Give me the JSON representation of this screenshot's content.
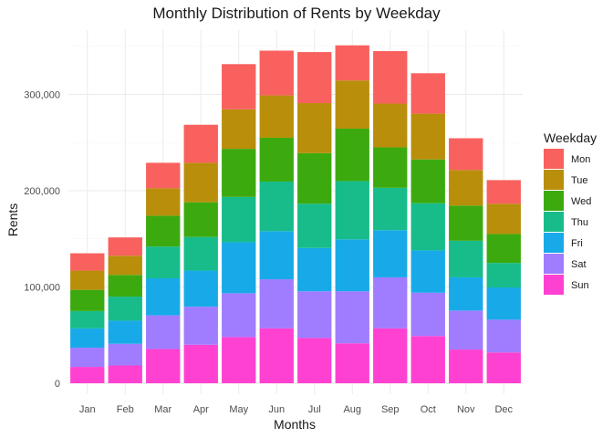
{
  "chart_data": {
    "type": "bar",
    "stacked": true,
    "title": "Monthly Distribution of Rents by Weekday",
    "xlabel": "Months",
    "ylabel": "Rents",
    "ylim": [
      0,
      350000
    ],
    "yticks": [
      0,
      100000,
      200000,
      300000
    ],
    "ytick_labels": [
      "0",
      "100,000",
      "200,000",
      "300,000"
    ],
    "grid": true,
    "legend": {
      "title": "Weekday",
      "position": "right"
    },
    "categories": [
      "Jan",
      "Feb",
      "Mar",
      "Apr",
      "May",
      "Jun",
      "Jul",
      "Aug",
      "Sep",
      "Oct",
      "Nov",
      "Dec"
    ],
    "series": [
      {
        "name": "Sun",
        "color": "#FF41D2",
        "values": [
          17000,
          18500,
          35500,
          40000,
          48000,
          57000,
          47000,
          41500,
          57000,
          49000,
          35000,
          32000
        ]
      },
      {
        "name": "Sat",
        "color": "#A07CFF",
        "values": [
          20000,
          22500,
          35000,
          39500,
          45500,
          51000,
          48500,
          54000,
          53000,
          45000,
          40500,
          34000
        ]
      },
      {
        "name": "Fri",
        "color": "#18AAE8",
        "values": [
          20000,
          24000,
          38500,
          37500,
          53000,
          50000,
          45000,
          54000,
          49000,
          44000,
          34500,
          33500
        ]
      },
      {
        "name": "Thu",
        "color": "#17BC8A",
        "values": [
          18000,
          25000,
          33000,
          35000,
          47000,
          51500,
          46000,
          60500,
          44000,
          49000,
          38000,
          25500
        ]
      },
      {
        "name": "Wed",
        "color": "#3CAA0F",
        "values": [
          22000,
          22500,
          32000,
          36000,
          50000,
          45500,
          52500,
          54500,
          42000,
          45500,
          36500,
          30000
        ]
      },
      {
        "name": "Tue",
        "color": "#B88E0B",
        "values": [
          20000,
          20000,
          28500,
          41000,
          41000,
          44000,
          52000,
          50000,
          45500,
          47500,
          37000,
          31500
        ]
      },
      {
        "name": "Mon",
        "color": "#F8615E",
        "values": [
          18000,
          19000,
          26500,
          39500,
          47000,
          46500,
          53000,
          36500,
          54500,
          42000,
          33000,
          24500
        ]
      }
    ]
  }
}
